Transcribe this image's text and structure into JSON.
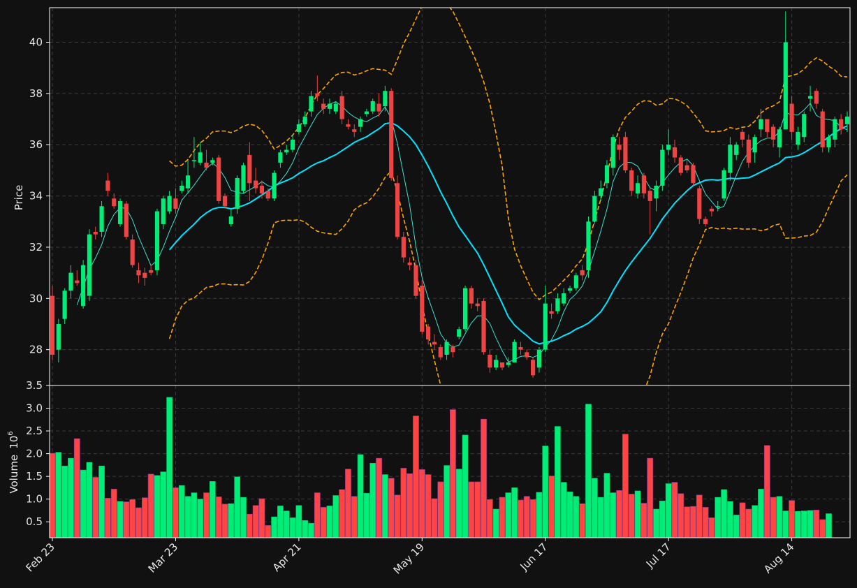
{
  "chart_data": {
    "type": "candlestick",
    "price_panel": {
      "ylabel": "Price",
      "y_ticks": [
        28,
        30,
        32,
        34,
        36,
        38,
        40
      ],
      "ylim": [
        26.6,
        41.35
      ],
      "grid": true
    },
    "volume_panel": {
      "ylabel": "Volume",
      "ylabel_exponent": "10",
      "ylabel_exponent_power": "6",
      "y_ticks": [
        "0.5",
        "1.0",
        "1.5",
        "2.0",
        "2.5",
        "3.0",
        "3.5"
      ],
      "ylim": [
        0.15,
        3.5
      ],
      "grid": true
    },
    "x_ticks": [
      {
        "label": "Feb 23",
        "index": 0
      },
      {
        "label": "Mar 23",
        "index": 20
      },
      {
        "label": "Apr 21",
        "index": 40
      },
      {
        "label": "May 19",
        "index": 60
      },
      {
        "label": "Jun 17",
        "index": 80
      },
      {
        "label": "Jul 17",
        "index": 100
      },
      {
        "label": "Aug 14",
        "index": 120
      }
    ],
    "colors": {
      "background": "#111111",
      "up": "#00ee77",
      "down": "#ee4444",
      "volume_up": "#00ee77",
      "volume_down": "#ff4444",
      "ma_short": "#40e0d0",
      "ma_long": "#00e5ff",
      "bollinger": "#ffa500",
      "grid": "#3a3a3a",
      "axis": "#ffffff"
    },
    "series": [
      {
        "name": "MA short",
        "window": 5,
        "style": "thin line"
      },
      {
        "name": "MA long",
        "window": 20,
        "style": "thick line"
      },
      {
        "name": "Bollinger bands",
        "window": 20,
        "style": "dashed"
      }
    ],
    "candles": [
      [
        30.1,
        27.8
      ],
      [
        28.0,
        29.0
      ],
      [
        29.2,
        30.3
      ],
      [
        30.3,
        31.0
      ],
      [
        30.7,
        30.6
      ],
      [
        29.7,
        31.3
      ],
      [
        30.1,
        32.5
      ],
      [
        32.6,
        32.5
      ],
      [
        32.6,
        33.6
      ],
      [
        34.6,
        34.2
      ],
      [
        33.9,
        33.6
      ],
      [
        32.9,
        33.8
      ],
      [
        33.7,
        32.4
      ],
      [
        32.3,
        31.3
      ],
      [
        31.1,
        30.9
      ],
      [
        31.0,
        30.8
      ],
      [
        31.1,
        31.0
      ],
      [
        31.1,
        33.4
      ],
      [
        32.9,
        33.9
      ],
      [
        33.4,
        34.0
      ],
      [
        33.9,
        33.5
      ],
      [
        34.2,
        34.4
      ],
      [
        34.3,
        34.8
      ],
      [
        35.4,
        35.4
      ],
      [
        35.3,
        35.7
      ],
      [
        35.3,
        35.1
      ],
      [
        35.3,
        35.4
      ],
      [
        35.5,
        33.8
      ],
      [
        34.0,
        33.6
      ],
      [
        32.9,
        33.2
      ],
      [
        33.5,
        34.7
      ],
      [
        34.2,
        35.2
      ],
      [
        35.6,
        34.5
      ],
      [
        34.6,
        34.3
      ],
      [
        34.4,
        34.1
      ],
      [
        34.2,
        33.9
      ],
      [
        33.9,
        34.9
      ],
      [
        35.3,
        35.7
      ],
      [
        35.7,
        35.8
      ],
      [
        35.8,
        36.2
      ],
      [
        36.5,
        36.8
      ],
      [
        36.8,
        37.1
      ],
      [
        37.3,
        37.9
      ],
      [
        38.0,
        37.9
      ],
      [
        37.6,
        37.4
      ],
      [
        37.4,
        37.6
      ],
      [
        37.3,
        37.6
      ],
      [
        37.9,
        37.0
      ],
      [
        36.8,
        36.7
      ],
      [
        36.6,
        36.5
      ],
      [
        36.7,
        37.0
      ],
      [
        37.2,
        37.3
      ],
      [
        37.3,
        37.7
      ],
      [
        37.6,
        37.3
      ],
      [
        37.5,
        38.1
      ],
      [
        38.1,
        34.7
      ],
      [
        34.5,
        32.4
      ],
      [
        32.4,
        31.6
      ],
      [
        31.4,
        31.3
      ],
      [
        31.3,
        30.1
      ],
      [
        30.5,
        28.7
      ],
      [
        28.9,
        28.4
      ],
      [
        28.3,
        28.2
      ],
      [
        28.1,
        27.7
      ],
      [
        27.8,
        28.3
      ],
      [
        28.1,
        27.9
      ],
      [
        28.5,
        28.8
      ],
      [
        28.8,
        30.4
      ],
      [
        30.4,
        29.8
      ],
      [
        29.8,
        29.7
      ],
      [
        29.9,
        27.9
      ],
      [
        27.8,
        27.3
      ],
      [
        27.3,
        27.6
      ],
      [
        27.5,
        27.3
      ],
      [
        27.4,
        27.5
      ],
      [
        27.5,
        28.3
      ],
      [
        28.1,
        28.0
      ],
      [
        27.9,
        27.7
      ],
      [
        27.6,
        27.0
      ],
      [
        27.3,
        28.0
      ],
      [
        28.0,
        29.8
      ],
      [
        29.5,
        29.4
      ],
      [
        29.5,
        30.0
      ],
      [
        29.8,
        30.2
      ],
      [
        30.3,
        30.4
      ],
      [
        30.4,
        30.9
      ],
      [
        31.1,
        30.9
      ],
      [
        31.1,
        33.0
      ],
      [
        33.0,
        34.0
      ],
      [
        34.0,
        34.3
      ],
      [
        34.5,
        35.2
      ],
      [
        35.1,
        36.3
      ],
      [
        36.0,
        35.8
      ],
      [
        36.3,
        35.0
      ],
      [
        35.0,
        34.2
      ],
      [
        34.1,
        34.5
      ],
      [
        34.8,
        34.1
      ],
      [
        34.2,
        33.8
      ],
      [
        33.9,
        34.4
      ],
      [
        34.4,
        35.8
      ],
      [
        35.8,
        36.0
      ],
      [
        35.9,
        35.5
      ],
      [
        35.5,
        34.9
      ],
      [
        35.2,
        35.0
      ],
      [
        35.2,
        34.5
      ],
      [
        34.3,
        33.1
      ],
      [
        33.1,
        32.9
      ],
      [
        33.5,
        33.4
      ],
      [
        33.6,
        33.6
      ],
      [
        33.9,
        35.0
      ],
      [
        34.9,
        36.0
      ],
      [
        35.6,
        36.0
      ],
      [
        36.5,
        36.2
      ],
      [
        36.2,
        35.3
      ],
      [
        35.7,
        36.3
      ],
      [
        36.6,
        37.0
      ],
      [
        37.0,
        36.5
      ],
      [
        36.7,
        36.2
      ],
      [
        35.9,
        36.6
      ],
      [
        36.6,
        40.0
      ],
      [
        37.6,
        36.5
      ],
      [
        36.0,
        36.5
      ],
      [
        36.3,
        37.2
      ],
      [
        37.8,
        37.9
      ],
      [
        38.1,
        37.6
      ],
      [
        37.3,
        35.9
      ],
      [
        35.9,
        36.3
      ],
      [
        36.2,
        37.0
      ],
      [
        37.0,
        36.6
      ],
      [
        36.8,
        37.1
      ]
    ],
    "highs": [
      30.5,
      29.2,
      30.4,
      31.3,
      31.1,
      31.5,
      32.7,
      32.8,
      33.8,
      34.9,
      34.1,
      33.9,
      33.8,
      32.5,
      31.4,
      31.2,
      31.3,
      33.5,
      34.0,
      34.2,
      34.3,
      34.6,
      35.4,
      36.3,
      36.1,
      35.8,
      35.5,
      35.6,
      34.1,
      33.5,
      34.8,
      35.3,
      36.1,
      35.1,
      34.6,
      34.3,
      35.0,
      35.8,
      36.0,
      36.4,
      37.0,
      37.3,
      38.1,
      38.7,
      37.8,
      37.8,
      37.7,
      38.1,
      37.0,
      36.8,
      37.1,
      37.4,
      37.8,
      38.0,
      38.3,
      38.2,
      34.8,
      32.6,
      31.6,
      31.5,
      30.7,
      29.0,
      28.6,
      28.2,
      28.4,
      28.2,
      28.9,
      30.5,
      30.5,
      30.0,
      30.0,
      28.0,
      27.8,
      27.5,
      27.7,
      28.4,
      28.3,
      28.0,
      27.7,
      28.1,
      30.5,
      29.8,
      30.2,
      30.4,
      30.5,
      31.0,
      31.3,
      33.2,
      34.2,
      34.6,
      35.4,
      36.4,
      36.3,
      36.5,
      35.1,
      34.8,
      34.9,
      34.3,
      34.6,
      36.0,
      36.6,
      36.2,
      35.6,
      35.4,
      35.3,
      34.4,
      33.2,
      33.6,
      33.8,
      35.1,
      36.3,
      36.1,
      36.6,
      36.4,
      36.4,
      37.4,
      37.0,
      36.8,
      36.7,
      41.2,
      37.9,
      36.7,
      37.3,
      38.3,
      38.2,
      37.4,
      36.4,
      37.1,
      37.2,
      37.3
    ],
    "lows": [
      27.6,
      27.5,
      29.0,
      30.0,
      30.5,
      29.6,
      29.9,
      32.3,
      32.4,
      34.0,
      33.5,
      32.8,
      32.3,
      31.2,
      30.6,
      30.5,
      30.9,
      30.9,
      32.7,
      33.3,
      33.3,
      34.1,
      34.1,
      35.1,
      35.2,
      35.0,
      35.2,
      33.7,
      33.5,
      32.8,
      33.3,
      34.1,
      33.8,
      34.1,
      33.9,
      33.8,
      33.8,
      35.1,
      35.6,
      35.7,
      36.4,
      36.7,
      37.1,
      37.7,
      37.2,
      37.2,
      37.2,
      36.8,
      36.6,
      36.3,
      36.5,
      37.1,
      37.2,
      37.1,
      37.3,
      34.6,
      32.3,
      31.4,
      31.1,
      30.0,
      28.6,
      28.2,
      28.0,
      27.6,
      27.6,
      27.7,
      28.4,
      28.7,
      29.6,
      29.5,
      27.8,
      27.1,
      27.2,
      27.2,
      27.3,
      28.0,
      27.8,
      27.6,
      26.9,
      27.1,
      27.9,
      29.2,
      29.4,
      29.7,
      30.2,
      30.3,
      30.7,
      30.8,
      32.9,
      33.8,
      34.3,
      34.8,
      35.4,
      34.9,
      34.0,
      33.9,
      33.9,
      32.5,
      33.4,
      34.2,
      35.6,
      35.3,
      34.8,
      34.9,
      34.4,
      32.9,
      32.8,
      33.2,
      33.4,
      33.8,
      34.6,
      35.4,
      35.9,
      35.1,
      35.3,
      36.3,
      36.3,
      35.9,
      35.5,
      37.4,
      36.2,
      35.8,
      36.1,
      37.3,
      37.4,
      35.7,
      35.7,
      35.9,
      36.4,
      36.5
    ],
    "volumes": [
      2.01,
      2.03,
      1.73,
      1.9,
      2.33,
      1.64,
      1.81,
      1.48,
      1.73,
      1.02,
      1.22,
      0.95,
      0.94,
      0.99,
      0.81,
      1.03,
      1.55,
      1.52,
      1.6,
      3.24,
      1.25,
      1.3,
      1.06,
      1.14,
      1.0,
      1.14,
      1.39,
      1.05,
      0.89,
      0.9,
      1.49,
      1.04,
      0.67,
      0.86,
      1.01,
      0.42,
      0.61,
      0.85,
      0.74,
      0.59,
      0.86,
      0.53,
      0.47,
      1.14,
      0.82,
      0.85,
      1.08,
      1.21,
      1.66,
      1.06,
      1.98,
      1.13,
      1.79,
      1.9,
      1.54,
      1.46,
      1.09,
      1.68,
      1.56,
      2.83,
      1.65,
      1.54,
      1.01,
      1.38,
      1.74,
      2.97,
      1.66,
      2.41,
      1.38,
      1.38,
      2.76,
      0.99,
      0.78,
      1.04,
      1.14,
      1.25,
      0.98,
      1.06,
      0.99,
      1.15,
      2.17,
      1.51,
      2.6,
      1.37,
      1.16,
      1.06,
      0.9,
      3.09,
      1.46,
      1.04,
      1.57,
      1.14,
      1.19,
      2.43,
      1.11,
      1.18,
      0.91,
      1.9,
      0.78,
      0.96,
      1.34,
      1.37,
      1.12,
      0.83,
      0.84,
      1.09,
      0.82,
      0.59,
      1.04,
      1.21,
      0.95,
      0.65,
      0.92,
      0.78,
      0.86,
      1.22,
      2.18,
      1.04,
      1.06,
      0.74,
      0.97,
      0.73,
      0.74,
      0.75,
      0.76,
      0.55,
      0.68
    ]
  }
}
